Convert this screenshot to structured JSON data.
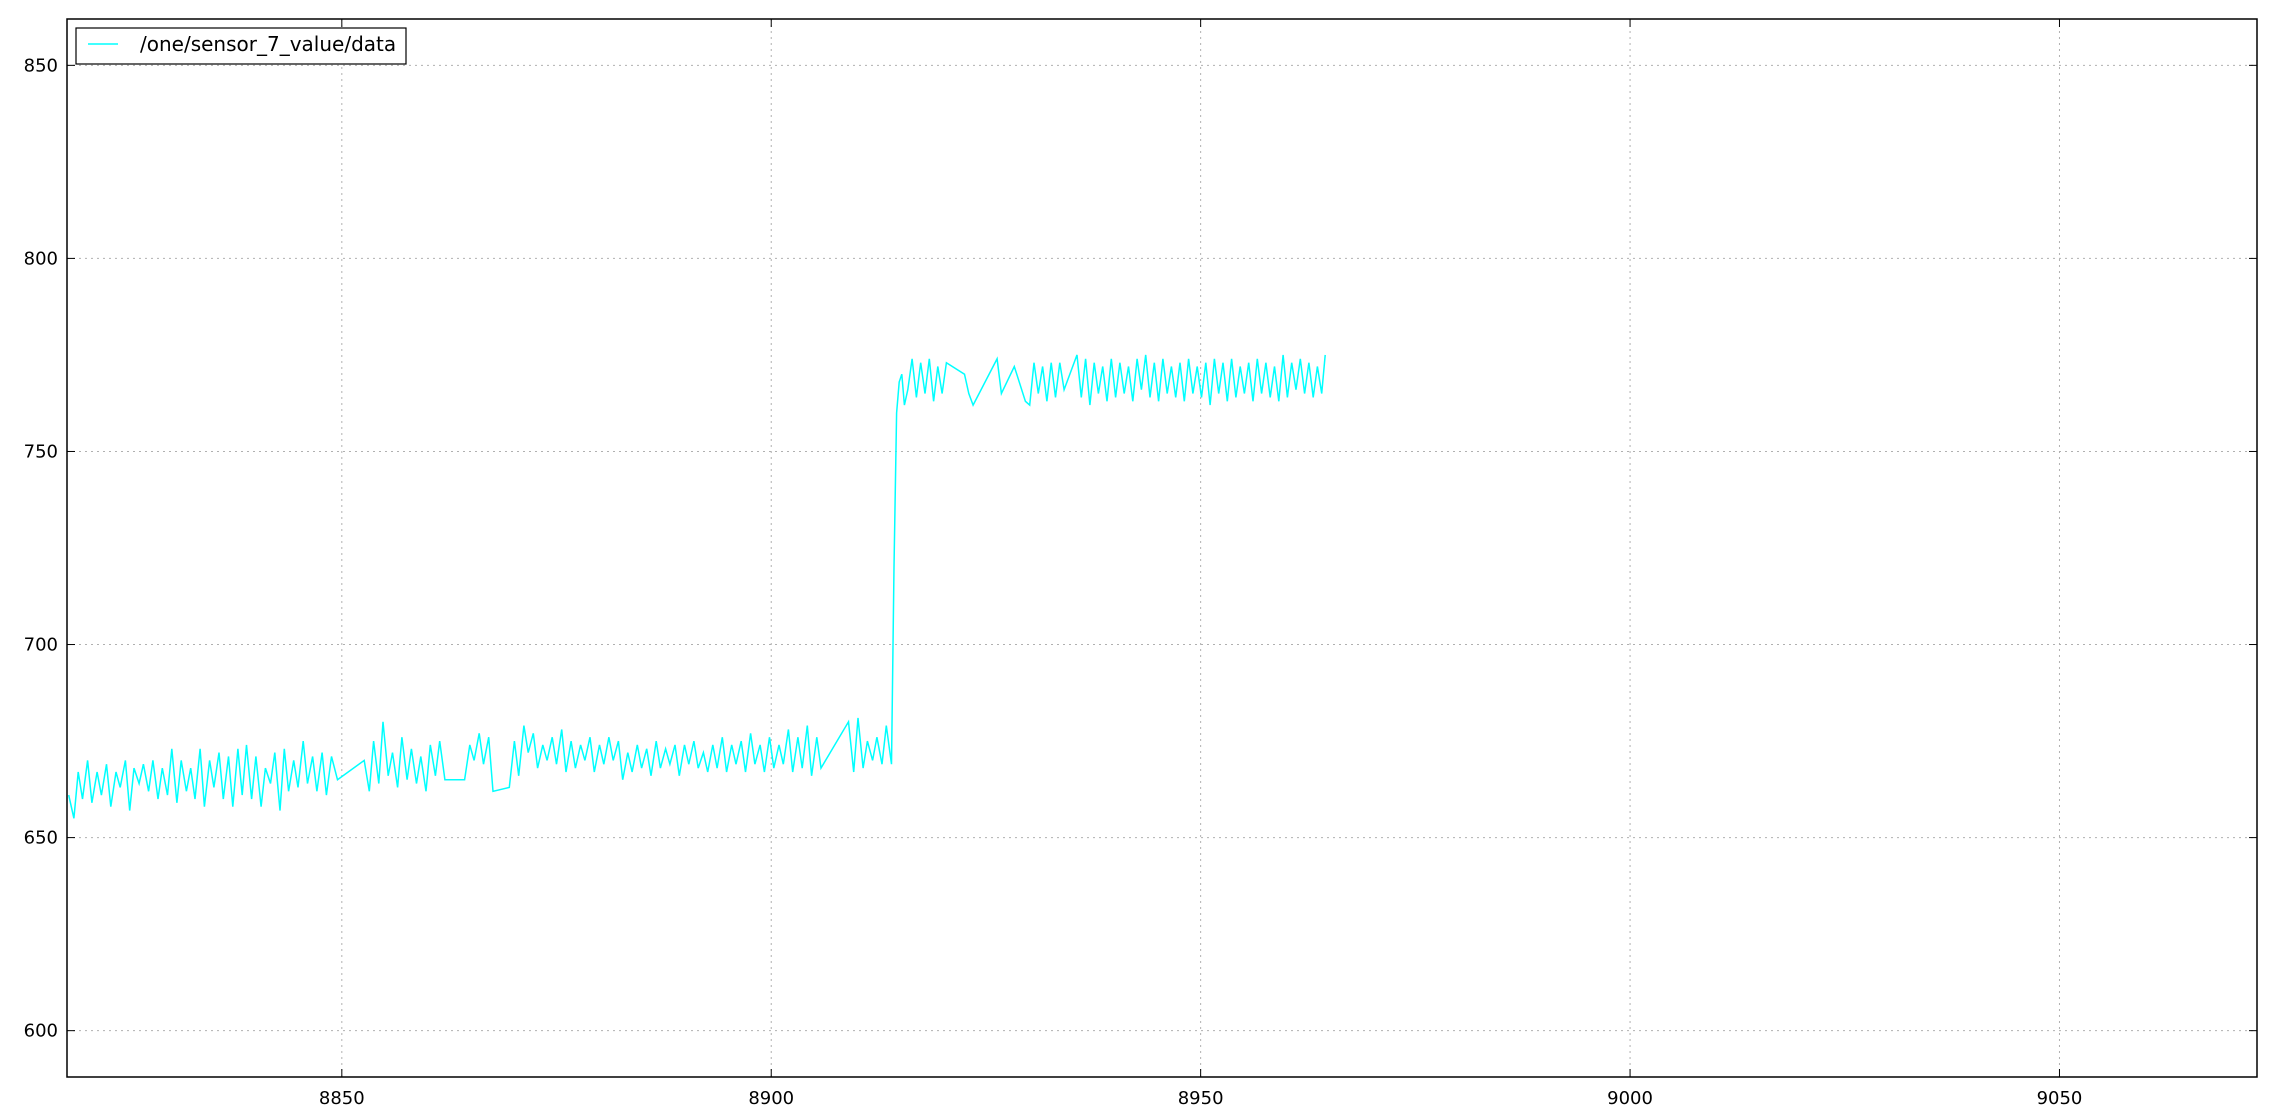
{
  "chart_data": {
    "type": "line",
    "title": "",
    "xlabel": "",
    "ylabel": "",
    "xlim": [
      8818,
      9073
    ],
    "ylim": [
      588,
      862
    ],
    "x_ticks": [
      8850,
      8900,
      8950,
      9000,
      9050
    ],
    "y_ticks": [
      600,
      650,
      700,
      750,
      800,
      850
    ],
    "grid": true,
    "legend_position": "top-left",
    "series": [
      {
        "name": "/one/sensor_7_value/data",
        "color": "#00ffff",
        "x": [
          8818.2,
          8818.8,
          8819.3,
          8819.8,
          8820.4,
          8820.9,
          8821.5,
          8822.0,
          8822.6,
          8823.1,
          8823.7,
          8824.2,
          8824.8,
          8825.3,
          8825.8,
          8826.4,
          8826.9,
          8827.5,
          8828.0,
          8828.6,
          8829.1,
          8829.7,
          8830.2,
          8830.8,
          8831.3,
          8831.9,
          8832.4,
          8832.9,
          8833.5,
          8834.0,
          8834.6,
          8835.1,
          8835.7,
          8836.2,
          8836.8,
          8837.3,
          8837.9,
          8838.4,
          8838.9,
          8839.5,
          8840.0,
          8840.6,
          8841.1,
          8841.7,
          8842.2,
          8842.8,
          8843.3,
          8843.8,
          8844.4,
          8844.9,
          8845.5,
          8846.0,
          8846.6,
          8847.1,
          8847.7,
          8848.2,
          8848.8,
          8849.5,
          8852.6,
          8853.2,
          8853.7,
          8854.3,
          8854.8,
          8855.4,
          8855.9,
          8856.5,
          8857.0,
          8857.6,
          8858.1,
          8858.7,
          8859.2,
          8859.8,
          8860.3,
          8860.9,
          8861.4,
          8862.0,
          8864.3,
          8864.9,
          8865.4,
          8866.0,
          8866.5,
          8867.1,
          8867.6,
          8869.5,
          8870.1,
          8870.6,
          8871.2,
          8871.7,
          8872.3,
          8872.8,
          8873.4,
          8873.9,
          8874.5,
          8875.0,
          8875.6,
          8876.1,
          8876.7,
          8877.2,
          8877.8,
          8878.3,
          8878.9,
          8879.4,
          8880.0,
          8880.5,
          8881.1,
          8881.6,
          8882.2,
          8882.7,
          8883.3,
          8883.8,
          8884.4,
          8884.9,
          8885.5,
          8886.0,
          8886.6,
          8887.1,
          8887.7,
          8888.2,
          8888.8,
          8889.3,
          8889.9,
          8890.4,
          8891.0,
          8891.5,
          8892.1,
          8892.6,
          8893.2,
          8893.7,
          8894.3,
          8894.8,
          8895.4,
          8895.9,
          8896.5,
          8897.0,
          8897.6,
          8898.1,
          8898.7,
          8899.2,
          8899.8,
          8900.3,
          8900.9,
          8901.4,
          8902.0,
          8902.5,
          8903.1,
          8903.6,
          8904.2,
          8904.7,
          8905.3,
          8905.8,
          8909.0,
          8909.6,
          8910.1,
          8910.7,
          8911.2,
          8911.8,
          8912.3,
          8912.9,
          8913.4,
          8914.0,
          8914.3,
          8914.6,
          8914.9,
          8915.2,
          8915.5,
          8915.9,
          8916.4,
          8916.9,
          8917.4,
          8917.9,
          8918.4,
          8918.9,
          8919.4,
          8919.9,
          8920.4,
          8922.5,
          8923.0,
          8923.5,
          8926.3,
          8926.8,
          8928.3,
          8929.6,
          8930.1,
          8930.6,
          8931.1,
          8931.6,
          8932.1,
          8932.6,
          8933.1,
          8933.6,
          8934.1,
          8935.6,
          8936.1,
          8936.6,
          8937.1,
          8937.6,
          8938.1,
          8938.6,
          8939.1,
          8939.6,
          8940.1,
          8940.6,
          8941.1,
          8941.6,
          8942.1,
          8942.6,
          8943.1,
          8943.6,
          8944.1,
          8944.6,
          8945.1,
          8945.6,
          8946.1,
          8946.6,
          8947.1,
          8947.6,
          8948.1,
          8948.6,
          8949.1,
          8949.6,
          8950.1,
          8950.6,
          8951.1,
          8951.6,
          8952.1,
          8952.6,
          8953.1,
          8953.6,
          8954.1,
          8954.6,
          8955.1,
          8955.6,
          8956.1,
          8956.6,
          8957.1,
          8957.6,
          8958.1,
          8958.6,
          8959.1,
          8959.6,
          8960.1,
          8960.6,
          8961.1,
          8961.6,
          8962.1,
          8962.6,
          8963.1,
          8963.6,
          8964.1,
          8964.5
        ],
        "y": [
          661,
          655,
          667,
          660,
          670,
          659,
          667,
          661,
          669,
          658,
          667,
          663,
          670,
          657,
          668,
          664,
          669,
          662,
          670,
          660,
          668,
          661,
          673,
          659,
          670,
          662,
          668,
          660,
          673,
          658,
          670,
          663,
          672,
          660,
          671,
          658,
          673,
          661,
          674,
          660,
          671,
          658,
          668,
          664,
          672,
          657,
          673,
          662,
          670,
          663,
          675,
          664,
          671,
          662,
          672,
          661,
          671,
          665,
          670,
          662,
          675,
          664,
          680,
          666,
          672,
          663,
          676,
          665,
          673,
          664,
          671,
          662,
          674,
          666,
          675,
          665,
          665,
          674,
          670,
          677,
          669,
          676,
          662,
          663,
          675,
          666,
          679,
          672,
          677,
          668,
          674,
          670,
          676,
          669,
          678,
          667,
          675,
          668,
          674,
          670,
          676,
          667,
          674,
          669,
          676,
          670,
          675,
          665,
          672,
          667,
          674,
          668,
          673,
          666,
          675,
          668,
          673,
          669,
          674,
          666,
          674,
          669,
          675,
          668,
          672,
          667,
          674,
          668,
          676,
          667,
          674,
          669,
          675,
          667,
          677,
          669,
          674,
          667,
          676,
          668,
          674,
          669,
          678,
          667,
          676,
          668,
          679,
          666,
          676,
          668,
          680,
          667,
          681,
          668,
          675,
          670,
          676,
          669,
          679,
          669,
          720,
          760,
          768,
          770,
          762,
          766,
          774,
          764,
          773,
          765,
          774,
          763,
          772,
          765,
          773,
          770,
          765,
          762,
          774,
          765,
          772,
          763,
          762,
          773,
          765,
          772,
          763,
          773,
          764,
          773,
          766,
          775,
          764,
          774,
          762,
          773,
          765,
          772,
          763,
          774,
          764,
          773,
          765,
          772,
          763,
          774,
          766,
          775,
          764,
          773,
          763,
          774,
          765,
          772,
          764,
          773,
          763,
          774,
          765,
          772,
          764,
          773,
          762,
          774,
          765,
          773,
          763,
          774,
          764,
          772,
          765,
          773,
          763,
          774,
          765,
          773,
          764,
          772,
          763,
          775,
          764,
          773,
          766,
          774,
          765,
          773,
          764,
          772,
          765,
          775
        ]
      }
    ]
  }
}
